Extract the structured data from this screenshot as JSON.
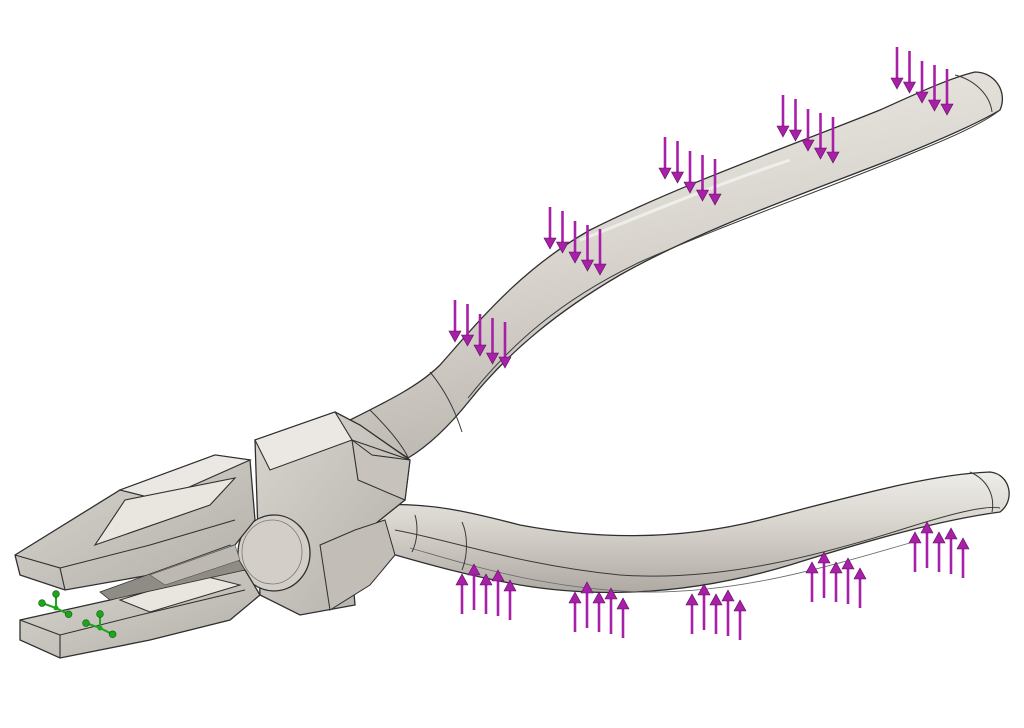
{
  "scene": {
    "subject": "pliers",
    "background_color": "#ffffff",
    "metal_light": "#e6e3de",
    "metal_mid": "#cfcbc4",
    "metal_dark": "#a7a39c",
    "edge_color": "#2f2f2f",
    "load_arrow_color": "#a81fa8",
    "fixture_color": "#1ea51e"
  },
  "loads": {
    "upper_handle": {
      "groups": 5,
      "arrows_per_group": 5,
      "direction": "down"
    },
    "lower_handle": {
      "groups": 5,
      "arrows_per_group": 5,
      "direction": "up"
    }
  },
  "fixture": {
    "icon": "fixed-geometry-icon",
    "count": 2,
    "location": "jaw tip"
  }
}
